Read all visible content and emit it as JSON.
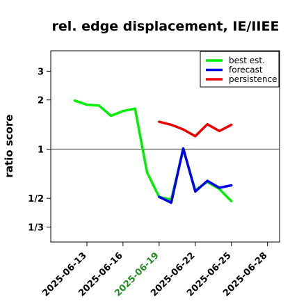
{
  "chart_data": {
    "type": "line",
    "title": "rel. edge displacement, IE/IIEE",
    "xlabel": "",
    "ylabel": "ratio score",
    "y_scale": "log",
    "ylim": [
      0.27,
      4.0
    ],
    "xlim": [
      "2025-06-10",
      "2025-06-29"
    ],
    "y_ticks": [
      {
        "value": 3,
        "label": "3"
      },
      {
        "value": 2,
        "label": "2"
      },
      {
        "value": 1,
        "label": "1"
      },
      {
        "value": 0.5,
        "label": "1/2"
      },
      {
        "value": 0.3333,
        "label": "1/3"
      }
    ],
    "x_ticks": [
      {
        "value": "2025-06-13",
        "label": "2025-06-13",
        "color": "#000000"
      },
      {
        "value": "2025-06-16",
        "label": "2025-06-16",
        "color": "#000000"
      },
      {
        "value": "2025-06-19",
        "label": "2025-06-19",
        "color": "#228B22"
      },
      {
        "value": "2025-06-22",
        "label": "2025-06-22",
        "color": "#000000"
      },
      {
        "value": "2025-06-25",
        "label": "2025-06-25",
        "color": "#000000"
      },
      {
        "value": "2025-06-28",
        "label": "2025-06-28",
        "color": "#000000"
      }
    ],
    "reference_line": 1,
    "legend_position": "top-right",
    "series": [
      {
        "name": "best est.",
        "color": "#00ee00",
        "x": [
          "2025-06-12",
          "2025-06-13",
          "2025-06-14",
          "2025-06-15",
          "2025-06-16",
          "2025-06-17",
          "2025-06-18",
          "2025-06-19",
          "2025-06-20",
          "2025-06-21",
          "2025-06-22",
          "2025-06-23",
          "2025-06-24",
          "2025-06-25"
        ],
        "y": [
          1.98,
          1.87,
          1.85,
          1.6,
          1.71,
          1.77,
          0.72,
          0.51,
          0.49,
          1.0,
          0.56,
          0.63,
          0.57,
          0.48
        ]
      },
      {
        "name": "forecast",
        "color": "#0000ee",
        "x": [
          "2025-06-19",
          "2025-06-20",
          "2025-06-21",
          "2025-06-22",
          "2025-06-23",
          "2025-06-24",
          "2025-06-25"
        ],
        "y": [
          0.51,
          0.47,
          1.01,
          0.55,
          0.64,
          0.58,
          0.6
        ]
      },
      {
        "name": "persistence",
        "color": "#ee0000",
        "x": [
          "2025-06-19",
          "2025-06-20",
          "2025-06-21",
          "2025-06-22",
          "2025-06-23",
          "2025-06-24",
          "2025-06-25"
        ],
        "y": [
          1.47,
          1.41,
          1.32,
          1.2,
          1.42,
          1.29,
          1.41
        ]
      }
    ]
  }
}
